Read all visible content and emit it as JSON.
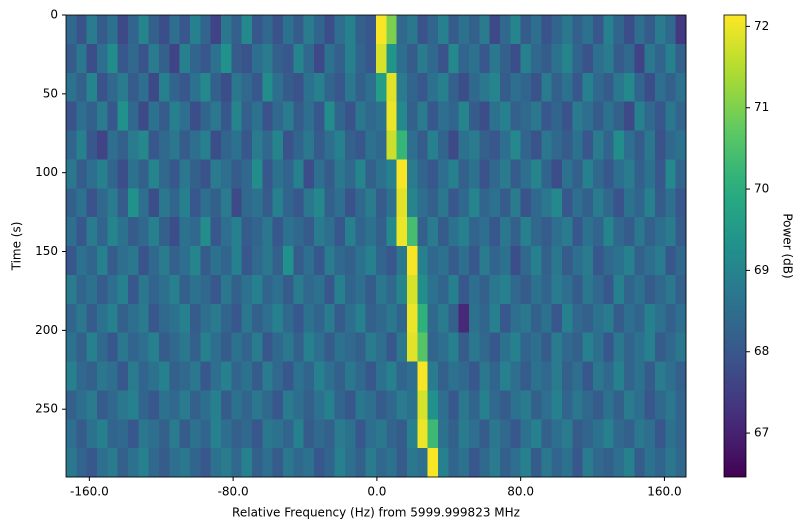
{
  "chart_data": {
    "type": "heatmap",
    "colormap": "viridis",
    "x_label": "Relative Frequency (Hz) from 5999.999823 MHz",
    "y_label": "Time (s)",
    "colorbar_label": "Power (dB)",
    "xlim": [
      -173,
      172
    ],
    "ylim": [
      293,
      0
    ],
    "clim": [
      66.46,
      72.14
    ],
    "xticks": [
      {
        "value": -160,
        "label": "-160.0"
      },
      {
        "value": -80,
        "label": "-80.0"
      },
      {
        "value": 0,
        "label": "0.0"
      },
      {
        "value": 80,
        "label": "80.0"
      },
      {
        "value": 160,
        "label": "160.0"
      }
    ],
    "yticks": [
      0,
      50,
      100,
      150,
      200,
      250
    ],
    "cticks": [
      67,
      68,
      69,
      70,
      71,
      72
    ],
    "z": [
      [
        68.4,
        67.9,
        68.8,
        68.1,
        68.6,
        67.7,
        68.3,
        69.0,
        68.2,
        67.8,
        68.5,
        68.0,
        68.9,
        68.3,
        67.6,
        68.7,
        68.2,
        69.1,
        68.0,
        68.4,
        67.9,
        68.6,
        68.1,
        68.8,
        68.3,
        67.8,
        68.5,
        68.9,
        68.2,
        68.0,
        72.1,
        71.0,
        68.4,
        68.7,
        67.9,
        68.3,
        68.9,
        68.1,
        68.6,
        68.2,
        68.8,
        67.7,
        68.4,
        69.0,
        68.1,
        68.5,
        67.9,
        68.3,
        68.7,
        68.2,
        68.6,
        68.0,
        68.9,
        68.3,
        67.8,
        68.5,
        68.1,
        68.8,
        68.4,
        67.4
      ],
      [
        68.1,
        68.7,
        67.8,
        68.5,
        69.2,
        68.0,
        68.4,
        67.9,
        68.8,
        68.2,
        67.6,
        68.9,
        68.3,
        68.0,
        68.6,
        69.3,
        68.1,
        67.9,
        68.5,
        68.8,
        68.2,
        68.0,
        69.0,
        68.4,
        67.7,
        68.6,
        68.2,
        68.9,
        68.3,
        68.0,
        71.8,
        69.4,
        68.5,
        68.1,
        68.8,
        68.4,
        67.9,
        69.1,
        68.3,
        68.6,
        68.0,
        68.7,
        68.2,
        67.8,
        68.9,
        68.4,
        68.1,
        68.6,
        69.0,
        68.3,
        67.9,
        68.5,
        68.8,
        68.1,
        68.4,
        67.6,
        68.7,
        68.3,
        68.9,
        68.2
      ],
      [
        68.6,
        68.2,
        69.0,
        67.9,
        68.4,
        68.8,
        68.1,
        68.5,
        67.7,
        68.9,
        68.3,
        68.0,
        68.6,
        69.1,
        68.2,
        67.8,
        68.7,
        68.4,
        68.0,
        69.2,
        68.5,
        68.1,
        67.9,
        68.6,
        68.9,
        68.3,
        68.0,
        68.7,
        68.2,
        68.5,
        69.6,
        71.9,
        68.8,
        68.3,
        68.0,
        68.6,
        68.9,
        68.2,
        67.8,
        68.4,
        68.7,
        69.0,
        68.1,
        68.5,
        68.3,
        67.9,
        68.8,
        68.2,
        68.6,
        68.0,
        68.9,
        68.4,
        68.1,
        68.7,
        69.1,
        68.3,
        67.8,
        68.5,
        68.2,
        68.6
      ],
      [
        67.9,
        68.5,
        68.2,
        68.8,
        68.0,
        69.3,
        68.4,
        67.7,
        68.6,
        68.1,
        68.9,
        68.5,
        67.8,
        68.3,
        68.7,
        68.0,
        69.0,
        68.2,
        68.6,
        67.9,
        68.4,
        68.8,
        68.1,
        68.5,
        68.0,
        69.2,
        68.3,
        67.9,
        68.7,
        68.4,
        68.6,
        72.0,
        69.1,
        68.2,
        68.8,
        68.0,
        68.5,
        68.3,
        69.0,
        68.1,
        67.8,
        68.6,
        68.9,
        68.2,
        68.4,
        68.7,
        68.0,
        68.3,
        67.9,
        68.8,
        68.5,
        68.1,
        68.6,
        68.2,
        67.7,
        68.9,
        68.4,
        68.0,
        68.7,
        68.3
      ],
      [
        68.3,
        68.9,
        68.0,
        67.6,
        68.5,
        68.2,
        68.8,
        69.1,
        68.0,
        68.4,
        68.7,
        68.1,
        68.5,
        68.9,
        67.8,
        68.3,
        68.6,
        68.0,
        68.8,
        68.4,
        69.0,
        67.9,
        68.3,
        68.7,
        68.1,
        68.5,
        68.9,
        68.2,
        68.0,
        68.6,
        68.4,
        71.7,
        70.2,
        68.5,
        68.1,
        68.9,
        68.3,
        67.7,
        68.6,
        68.8,
        68.2,
        68.0,
        68.5,
        69.1,
        68.3,
        67.9,
        68.7,
        68.4,
        68.1,
        68.6,
        68.0,
        68.8,
        68.3,
        69.2,
        68.5,
        68.1,
        68.7,
        67.9,
        68.4,
        68.6
      ],
      [
        68.7,
        68.1,
        68.5,
        68.9,
        68.3,
        67.8,
        68.6,
        68.2,
        69.0,
        68.4,
        68.0,
        68.7,
        68.2,
        67.9,
        68.8,
        68.5,
        68.1,
        68.4,
        69.2,
        68.0,
        68.6,
        68.3,
        68.9,
        67.8,
        68.5,
        68.1,
        68.7,
        68.4,
        69.0,
        68.2,
        68.6,
        68.9,
        72.1,
        68.8,
        68.3,
        68.0,
        68.5,
        68.9,
        68.2,
        68.6,
        67.9,
        68.4,
        68.8,
        68.1,
        68.5,
        69.0,
        68.3,
        67.8,
        68.6,
        68.2,
        68.9,
        68.4,
        68.0,
        68.5,
        68.8,
        68.2,
        68.6,
        68.0,
        69.1,
        68.3
      ],
      [
        68.2,
        68.6,
        67.9,
        68.4,
        68.8,
        68.1,
        69.3,
        68.5,
        67.8,
        68.7,
        68.3,
        68.9,
        68.0,
        68.5,
        68.2,
        68.8,
        67.7,
        68.4,
        68.6,
        68.1,
        68.9,
        68.3,
        68.0,
        68.7,
        69.1,
        68.2,
        68.5,
        67.9,
        68.4,
        68.8,
        68.1,
        68.6,
        71.9,
        69.0,
        68.5,
        68.2,
        68.7,
        68.0,
        68.4,
        69.0,
        68.3,
        68.6,
        68.1,
        68.8,
        67.9,
        68.4,
        68.7,
        69.1,
        68.0,
        68.5,
        68.2,
        68.8,
        68.4,
        67.9,
        68.6,
        68.3,
        68.9,
        68.1,
        68.5,
        68.0
      ],
      [
        68.5,
        68.0,
        68.8,
        68.3,
        69.0,
        68.6,
        68.1,
        68.4,
        68.9,
        68.2,
        67.8,
        68.6,
        68.4,
        69.2,
        68.0,
        68.5,
        68.9,
        68.1,
        68.3,
        68.7,
        68.0,
        68.6,
        68.4,
        68.1,
        68.8,
        68.5,
        68.0,
        68.9,
        68.3,
        68.6,
        68.2,
        69.1,
        72.0,
        70.4,
        68.2,
        68.8,
        68.1,
        68.6,
        68.9,
        68.3,
        68.5,
        68.0,
        68.7,
        68.2,
        68.9,
        68.4,
        68.1,
        68.5,
        68.8,
        68.0,
        68.6,
        68.3,
        69.0,
        68.4,
        68.1,
        68.7,
        68.2,
        68.5,
        68.8,
        68.1
      ],
      [
        68.0,
        68.6,
        68.3,
        68.9,
        68.1,
        68.5,
        68.7,
        67.9,
        68.4,
        68.8,
        68.2,
        68.5,
        69.0,
        68.1,
        68.6,
        68.3,
        68.9,
        68.0,
        68.4,
        68.7,
        68.2,
        69.3,
        68.1,
        68.5,
        68.0,
        68.8,
        68.4,
        68.2,
        68.6,
        68.9,
        68.3,
        68.0,
        68.7,
        72.1,
        68.9,
        68.4,
        68.6,
        68.1,
        68.5,
        68.0,
        68.8,
        68.3,
        68.6,
        67.8,
        68.4,
        68.9,
        68.2,
        68.7,
        68.1,
        68.5,
        68.8,
        68.0,
        68.4,
        68.6,
        68.9,
        68.2,
        68.5,
        68.8,
        68.0,
        68.4
      ],
      [
        68.8,
        68.3,
        68.6,
        68.1,
        68.5,
        68.9,
        68.0,
        68.7,
        68.3,
        68.5,
        68.9,
        68.2,
        68.6,
        68.4,
        68.0,
        68.7,
        68.2,
        68.6,
        68.9,
        68.3,
        68.5,
        68.1,
        68.8,
        68.4,
        68.6,
        68.0,
        68.9,
        68.3,
        68.5,
        68.1,
        68.7,
        68.4,
        69.0,
        71.8,
        69.2,
        68.6,
        68.3,
        68.9,
        68.0,
        68.5,
        68.2,
        68.7,
        68.9,
        68.4,
        68.1,
        68.6,
        68.3,
        68.8,
        68.5,
        68.1,
        68.7,
        68.4,
        68.0,
        68.9,
        68.3,
        68.6,
        68.1,
        68.4,
        68.7,
        68.2
      ],
      [
        68.3,
        68.7,
        68.1,
        68.6,
        68.9,
        68.2,
        68.5,
        68.8,
        68.0,
        68.4,
        68.6,
        68.9,
        68.1,
        68.5,
        68.8,
        68.3,
        68.0,
        68.7,
        68.2,
        68.5,
        68.9,
        68.4,
        68.0,
        68.6,
        68.3,
        68.8,
        68.1,
        68.5,
        68.9,
        68.2,
        68.4,
        68.7,
        68.3,
        72.0,
        70.1,
        68.4,
        68.8,
        68.2,
        67.1,
        68.6,
        68.3,
        68.9,
        68.0,
        68.5,
        68.7,
        68.2,
        68.6,
        68.0,
        68.9,
        68.4,
        68.2,
        68.6,
        68.8,
        68.1,
        68.5,
        68.3,
        68.9,
        68.6,
        68.2,
        68.5
      ],
      [
        68.6,
        68.2,
        68.9,
        68.4,
        68.0,
        68.7,
        68.3,
        68.5,
        68.9,
        68.1,
        68.4,
        68.7,
        68.2,
        68.9,
        68.5,
        68.1,
        68.6,
        68.3,
        68.8,
        68.0,
        68.4,
        68.7,
        68.2,
        68.9,
        68.5,
        68.1,
        68.6,
        68.4,
        68.2,
        68.8,
        68.5,
        68.0,
        68.7,
        71.9,
        70.6,
        68.3,
        68.5,
        68.9,
        68.1,
        68.7,
        68.4,
        68.0,
        68.6,
        68.9,
        68.3,
        68.5,
        68.1,
        68.8,
        68.4,
        68.2,
        68.9,
        68.5,
        68.0,
        68.7,
        68.3,
        68.6,
        68.9,
        68.1,
        68.4,
        68.7
      ],
      [
        68.9,
        68.4,
        68.2,
        68.7,
        68.5,
        68.0,
        68.8,
        68.3,
        68.6,
        68.9,
        68.2,
        68.4,
        68.7,
        68.0,
        68.5,
        68.9,
        68.3,
        68.6,
        68.1,
        68.8,
        68.4,
        68.0,
        68.6,
        68.3,
        68.9,
        68.5,
        68.2,
        68.7,
        68.4,
        68.0,
        68.6,
        68.9,
        68.3,
        68.5,
        72.1,
        68.8,
        68.2,
        68.6,
        68.4,
        68.0,
        68.7,
        68.3,
        68.9,
        68.5,
        68.1,
        68.6,
        68.4,
        68.8,
        68.2,
        68.5,
        68.0,
        68.7,
        68.4,
        68.9,
        68.3,
        68.6,
        68.1,
        68.8,
        68.5,
        68.2
      ],
      [
        68.2,
        68.5,
        68.8,
        68.1,
        68.4,
        68.7,
        68.9,
        68.3,
        68.0,
        68.6,
        68.4,
        68.8,
        68.2,
        68.5,
        68.9,
        68.1,
        68.6,
        68.3,
        68.7,
        68.4,
        68.0,
        68.8,
        68.5,
        68.2,
        68.6,
        68.9,
        68.3,
        68.0,
        68.7,
        68.5,
        68.1,
        68.4,
        68.8,
        68.6,
        71.8,
        69.3,
        68.5,
        68.0,
        68.7,
        68.3,
        68.9,
        68.4,
        68.1,
        68.6,
        68.8,
        68.2,
        68.5,
        68.9,
        68.3,
        68.7,
        68.4,
        68.1,
        68.6,
        68.2,
        68.8,
        68.5,
        68.0,
        68.4,
        68.7,
        68.3
      ],
      [
        68.5,
        68.1,
        68.6,
        68.9,
        68.3,
        68.4,
        68.0,
        68.7,
        68.5,
        68.2,
        68.8,
        68.1,
        68.6,
        68.3,
        68.9,
        68.5,
        68.2,
        68.4,
        68.0,
        68.7,
        68.6,
        68.3,
        68.9,
        68.1,
        68.4,
        68.2,
        68.8,
        68.6,
        68.0,
        68.5,
        68.7,
        68.3,
        68.1,
        68.9,
        72.0,
        70.3,
        68.6,
        68.2,
        68.8,
        68.5,
        68.1,
        68.7,
        68.4,
        68.0,
        68.6,
        68.9,
        68.2,
        68.5,
        68.8,
        68.1,
        68.3,
        68.6,
        68.9,
        68.4,
        68.2,
        68.7,
        68.5,
        68.0,
        68.6,
        68.3
      ],
      [
        68.7,
        68.3,
        68.0,
        68.5,
        68.8,
        68.2,
        68.6,
        68.9,
        68.4,
        68.1,
        68.5,
        68.7,
        68.3,
        68.0,
        68.6,
        68.8,
        68.4,
        68.9,
        68.2,
        68.5,
        68.1,
        68.7,
        68.4,
        68.6,
        68.0,
        68.3,
        68.9,
        68.5,
        68.2,
        68.8,
        68.4,
        68.6,
        68.1,
        68.7,
        68.5,
        72.1,
        68.9,
        68.3,
        68.6,
        68.0,
        68.4,
        68.8,
        68.2,
        68.5,
        68.9,
        68.1,
        68.7,
        68.3,
        68.6,
        68.0,
        68.8,
        68.4,
        68.2,
        68.5,
        68.9,
        68.1,
        68.6,
        68.3,
        68.7,
        68.4
      ]
    ]
  }
}
